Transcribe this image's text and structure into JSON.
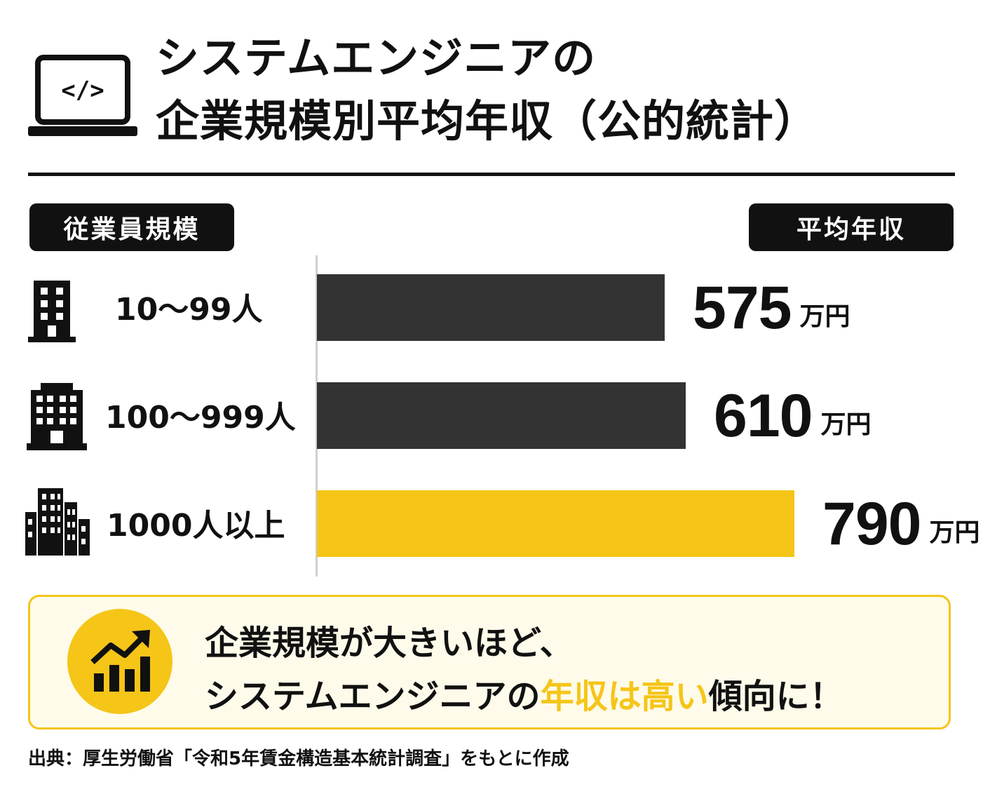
{
  "title": {
    "line1": "システムエンジニアの",
    "line2": "企業規模別平均年収（公的統計）"
  },
  "headers": {
    "left": "従業員規模",
    "right": "平均年収"
  },
  "chart_data": {
    "type": "bar",
    "orientation": "horizontal",
    "title": "システムエンジニアの企業規模別平均年収（公的統計）",
    "categories": [
      "10〜99人",
      "100〜999人",
      "1000人以上"
    ],
    "values": [
      575,
      610,
      790
    ],
    "unit": "万円",
    "colors": [
      "#333333",
      "#333333",
      "#f5c518"
    ],
    "xlim": [
      0,
      790
    ]
  },
  "callout": {
    "line1": "企業規模が大きいほど、",
    "line2_pre": "システムエンジニアの",
    "line2_hl": "年収は高い",
    "line2_post": "傾向に！",
    "icon": "growth-chart-icon",
    "accent": "#f5c518"
  },
  "source": "出典：厚生労働省「令和5年賃金構造基本統計調査」をもとに作成",
  "icons": {
    "header": "laptop-code-icon",
    "rows": [
      "small-building-icon",
      "medium-building-icon",
      "large-buildings-icon"
    ]
  }
}
